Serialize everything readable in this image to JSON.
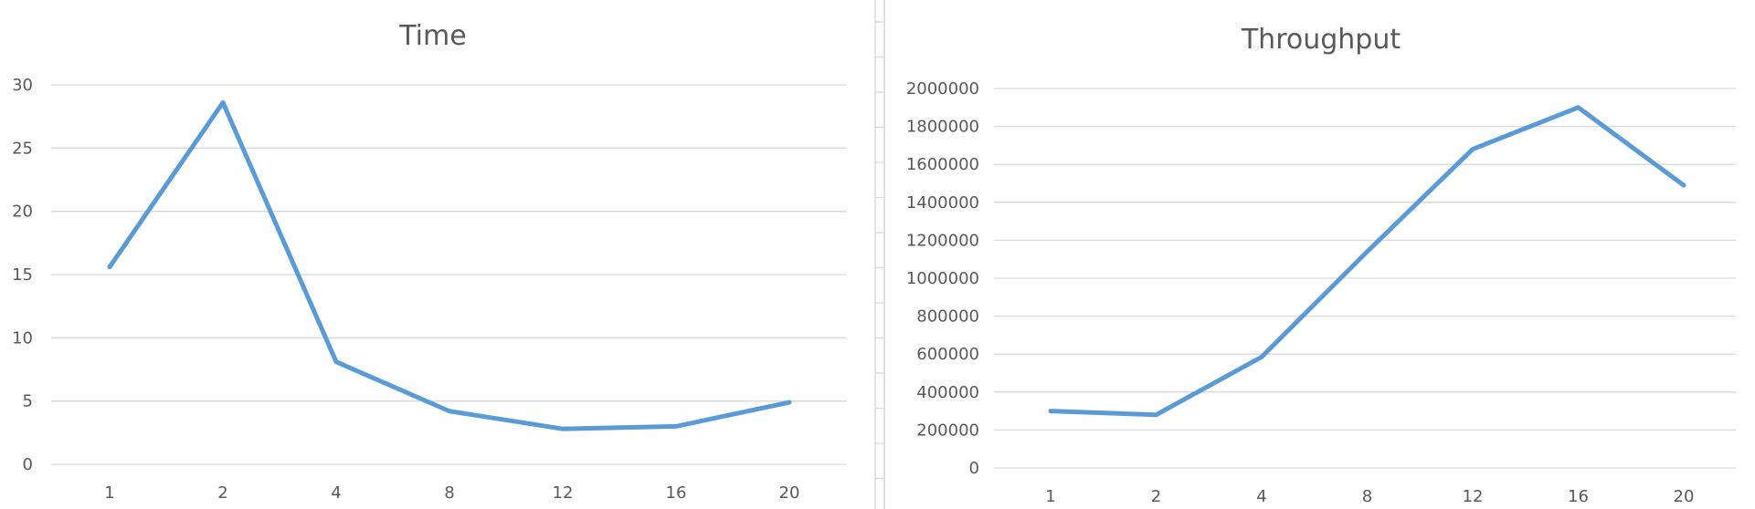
{
  "colors": {
    "series": "#5b9bd5",
    "grid": "#d9d9d9",
    "text": "#595959"
  },
  "chart_data": [
    {
      "type": "line",
      "title": "Time",
      "categories": [
        "1",
        "2",
        "4",
        "8",
        "12",
        "16",
        "20"
      ],
      "series": [
        {
          "values": [
            15.6,
            28.6,
            8.1,
            4.2,
            2.8,
            3.0,
            4.9
          ]
        }
      ],
      "ylim": [
        0,
        30
      ],
      "yticks": [
        "0",
        "5",
        "10",
        "15",
        "20",
        "25",
        "30"
      ],
      "grid": true,
      "legend": "none"
    },
    {
      "type": "line",
      "title": "Throughput",
      "categories": [
        "1",
        "2",
        "4",
        "8",
        "12",
        "16",
        "20"
      ],
      "series": [
        {
          "values": [
            300000,
            280000,
            585000,
            1140000,
            1680000,
            1900000,
            1490000
          ]
        }
      ],
      "ylim": [
        0,
        2000000
      ],
      "yticks": [
        "0",
        "200000",
        "400000",
        "600000",
        "800000",
        "1000000",
        "1200000",
        "1400000",
        "1600000",
        "1800000",
        "2000000"
      ],
      "grid": true,
      "legend": "none"
    }
  ]
}
